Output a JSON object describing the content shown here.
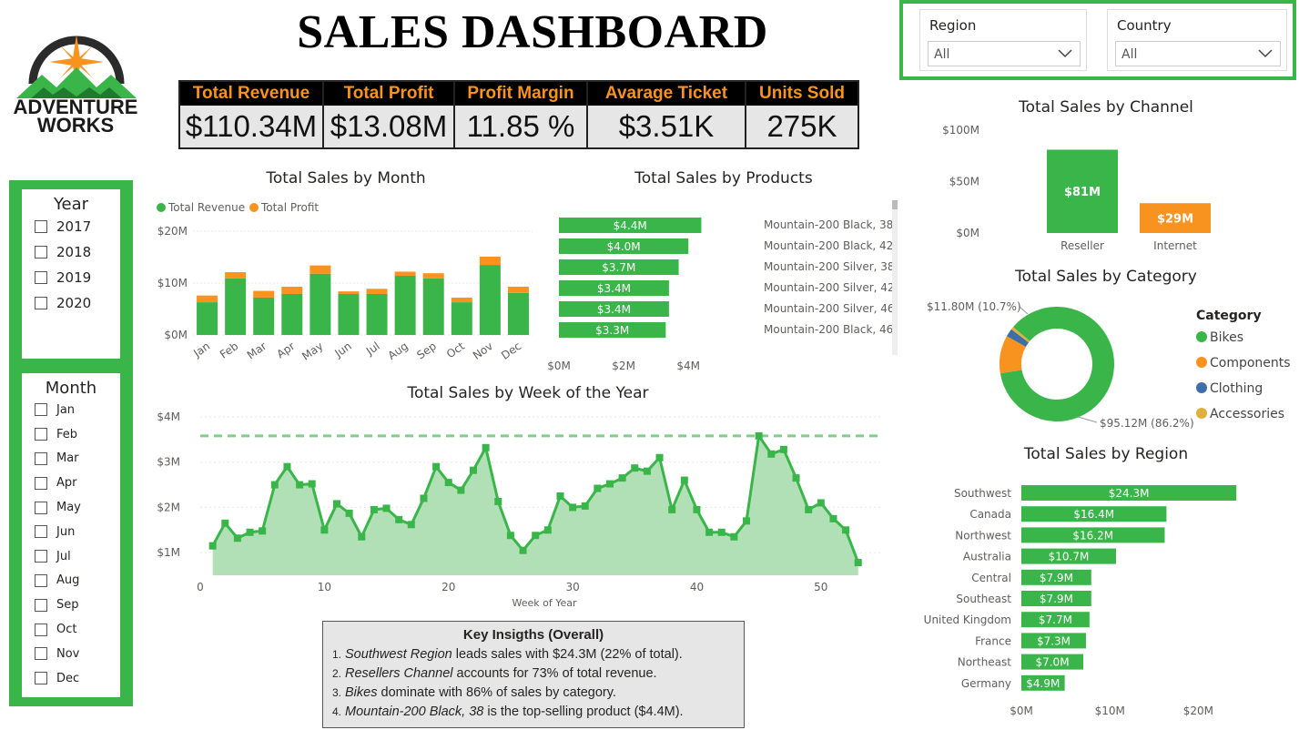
{
  "title": "SALES DASHBOARD",
  "logo": {
    "line1": "ADVENTURE",
    "line2": "WORKS"
  },
  "colors": {
    "accent": "#3ab54a",
    "orange": "#f7931e",
    "blue": "#3e6ea8",
    "gold": "#e0b03a"
  },
  "kpis": [
    {
      "label": "Total Revenue",
      "value": "$110.34M"
    },
    {
      "label": "Total Profit",
      "value": "$13.08M"
    },
    {
      "label": "Profit Margin",
      "value": "11.85 %"
    },
    {
      "label": "Avarage Ticket",
      "value": "$3.51K"
    },
    {
      "label": "Units Sold",
      "value": "275K"
    }
  ],
  "slicers": {
    "region": {
      "label": "Region",
      "value": "All"
    },
    "country": {
      "label": "Country",
      "value": "All"
    }
  },
  "year_filter": {
    "title": "Year",
    "options": [
      "2017",
      "2018",
      "2019",
      "2020"
    ]
  },
  "month_filter": {
    "title": "Month",
    "options": [
      "Jan",
      "Feb",
      "Mar",
      "Apr",
      "May",
      "Jun",
      "Jul",
      "Aug",
      "Sep",
      "Oct",
      "Nov",
      "Dec"
    ]
  },
  "insights": {
    "title": "Key Insigths (Overall)",
    "items": [
      {
        "num": "1.",
        "em": "Southwest Region",
        "rest": " leads sales with $24.3M (22% of total)."
      },
      {
        "num": "2.",
        "em": "Resellers Channel",
        "rest": " accounts for 73% of total revenue."
      },
      {
        "num": "3.",
        "em": "Bikes",
        "rest": " dominate with 86% of sales by category."
      },
      {
        "num": "4.",
        "em": "Mountain-200 Black, 38",
        "rest": " is the top-selling product ($4.4M)."
      }
    ]
  },
  "chart_data": [
    {
      "id": "month",
      "type": "bar",
      "title": "Total Sales by Month",
      "categories": [
        "Jan",
        "Feb",
        "Mar",
        "Apr",
        "May",
        "Jun",
        "Jul",
        "Aug",
        "Sep",
        "Oct",
        "Nov",
        "Dec"
      ],
      "series": [
        {
          "name": "Total Revenue",
          "values": [
            6.3,
            10.9,
            7.2,
            7.9,
            11.8,
            7.9,
            7.9,
            11.4,
            10.9,
            6.3,
            13.5,
            8.1
          ]
        },
        {
          "name": "Total Profit",
          "values": [
            1.3,
            1.2,
            1.3,
            1.4,
            1.6,
            0.5,
            1.0,
            0.8,
            1.0,
            0.9,
            1.6,
            1.2
          ]
        }
      ],
      "ytick_labels": [
        "$0M",
        "$10M",
        "$20M"
      ],
      "ylim": [
        0,
        20
      ],
      "legend": "top-left"
    },
    {
      "id": "products",
      "type": "bar",
      "orientation": "horizontal",
      "title": "Total Sales by Products",
      "categories": [
        "Mountain-200 Black, 38",
        "Mountain-200 Black, 42",
        "Mountain-200 Silver, 38",
        "Mountain-200 Silver, 42",
        "Mountain-200 Silver, 46",
        "Mountain-200 Black, 46"
      ],
      "values": [
        4.4,
        4.0,
        3.7,
        3.4,
        3.4,
        3.3
      ],
      "labels": [
        "$4.4M",
        "$4.0M",
        "$3.7M",
        "$3.4M",
        "$3.4M",
        "$3.3M"
      ],
      "xtick_labels": [
        "$0M",
        "$2M",
        "$4M"
      ],
      "xlim": [
        0,
        4.5
      ]
    },
    {
      "id": "week",
      "type": "area",
      "title": "Total Sales by Week of the Year",
      "xlabel": "Week of Year",
      "x": [
        1,
        2,
        3,
        4,
        5,
        6,
        7,
        8,
        9,
        10,
        11,
        12,
        13,
        14,
        15,
        16,
        17,
        18,
        19,
        20,
        21,
        22,
        23,
        24,
        25,
        26,
        27,
        28,
        29,
        30,
        31,
        32,
        33,
        34,
        35,
        36,
        37,
        38,
        39,
        40,
        41,
        42,
        43,
        44,
        45,
        46,
        47,
        48,
        49,
        50,
        51,
        52,
        53
      ],
      "values": [
        1.15,
        1.65,
        1.32,
        1.45,
        1.48,
        2.5,
        2.9,
        2.5,
        2.52,
        1.5,
        2.08,
        1.87,
        1.35,
        1.95,
        1.98,
        1.73,
        1.62,
        2.2,
        2.9,
        2.55,
        2.38,
        2.82,
        3.32,
        2.13,
        1.38,
        1.05,
        1.38,
        1.5,
        2.25,
        2.0,
        2.03,
        2.42,
        2.52,
        2.65,
        2.87,
        2.8,
        3.1,
        1.95,
        2.6,
        1.95,
        1.45,
        1.45,
        1.35,
        1.7,
        3.58,
        3.18,
        3.28,
        2.65,
        1.95,
        2.1,
        1.75,
        1.5,
        0.78
      ],
      "reference_line": 3.58,
      "xticks": [
        0,
        10,
        20,
        30,
        40,
        50
      ],
      "ytick_labels": [
        "$1M",
        "$2M",
        "$3M",
        "$4M"
      ],
      "ylim": [
        0.5,
        4
      ]
    },
    {
      "id": "channel",
      "type": "bar",
      "title": "Total Sales by Channel",
      "categories": [
        "Reseller",
        "Internet"
      ],
      "values": [
        81,
        29
      ],
      "labels": [
        "$81M",
        "$29M"
      ],
      "ytick_labels": [
        "$0M",
        "$50M",
        "$100M"
      ],
      "ylim": [
        0,
        100
      ]
    },
    {
      "id": "category",
      "type": "pie",
      "title": "Total Sales by Category",
      "legend_title": "Category",
      "labels": [
        "Bikes",
        "Components",
        "Clothing",
        "Accessories"
      ],
      "values": [
        86.2,
        10.7,
        2.3,
        0.8
      ],
      "annotations": [
        "$95.12M (86.2%)",
        "$11.80M (10.7%)"
      ],
      "legend": "right"
    },
    {
      "id": "region",
      "type": "bar",
      "orientation": "horizontal",
      "title": "Total Sales by Region",
      "categories": [
        "Southwest",
        "Canada",
        "Northwest",
        "Australia",
        "Central",
        "Southeast",
        "United Kingdom",
        "France",
        "Northeast",
        "Germany"
      ],
      "values": [
        24.3,
        16.4,
        16.2,
        10.7,
        7.9,
        7.9,
        7.7,
        7.3,
        7.0,
        4.9
      ],
      "labels": [
        "$24.3M",
        "$16.4M",
        "$16.2M",
        "$10.7M",
        "$7.9M",
        "$7.9M",
        "$7.7M",
        "$7.3M",
        "$7.0M",
        "$4.9M"
      ],
      "xtick_labels": [
        "$0M",
        "$10M",
        "$20M"
      ],
      "xlim": [
        0,
        25
      ]
    }
  ]
}
